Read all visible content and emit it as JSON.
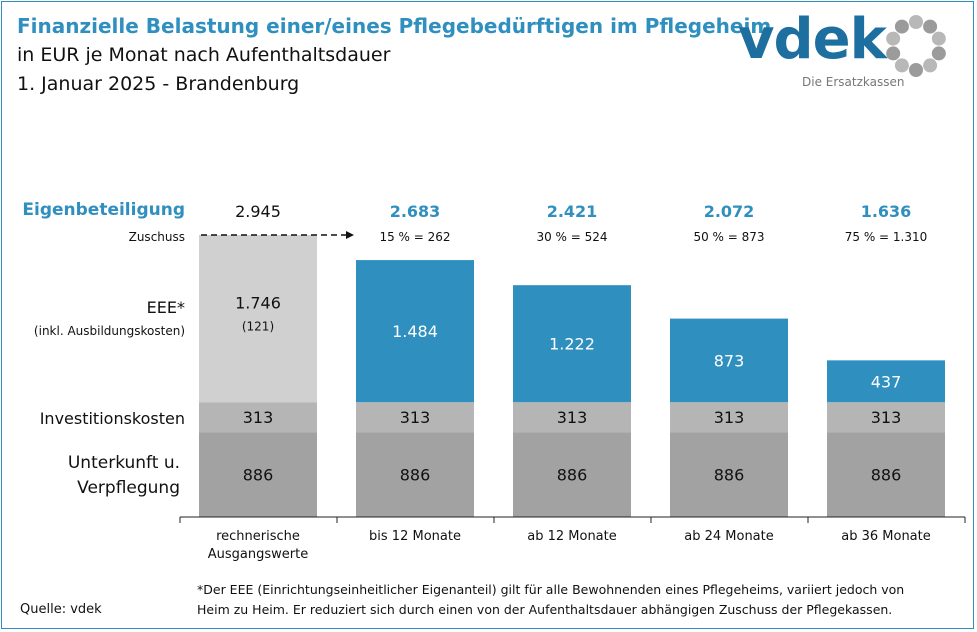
{
  "header": {
    "title": "Finanzielle Belastung einer/eines Pflegebedürftigen im Pflegeheim",
    "subtitle1": "in EUR je Monat nach Aufenthaltsdauer",
    "subtitle2": "1. Januar 2025 - Brandenburg"
  },
  "logo": {
    "text": "vdek",
    "tagline": "Die Ersatzkassen"
  },
  "footnote": "*Der EEE (Einrichtungseinheitlicher Eigenanteil) gilt für alle Bewohnenden eines Pflegeheims, variiert jedoch von Heim zu Heim. Er reduziert sich durch einen von der Aufenthaltsdauer abhängigen Zuschuss der Pflegekassen.",
  "source": "Quelle: vdek",
  "colors": {
    "accent": "#2f8fbf",
    "eee_baseline": "#d0d0d0",
    "investition": "#b5b5b5",
    "unterkunft": "#a2a2a2"
  },
  "chart_data": {
    "type": "bar",
    "stacked": true,
    "categories": [
      "rechnerische Ausgangswerte",
      "bis 12 Monate",
      "ab 12 Monate",
      "ab 24 Monate",
      "ab 36 Monate"
    ],
    "row_labels": {
      "eigenbeteiligung": "Eigenbeteiligung",
      "zuschuss": "Zuschuss",
      "eee": "EEE*",
      "eee_sub": "(inkl. Ausbildungskosten)",
      "investition": "Investitionskosten",
      "unterkunft": "Unterkunft u. Verpflegung"
    },
    "series": [
      {
        "name": "Unterkunft u. Verpflegung",
        "values": [
          886,
          886,
          886,
          886,
          886
        ]
      },
      {
        "name": "Investitionskosten",
        "values": [
          313,
          313,
          313,
          313,
          313
        ]
      },
      {
        "name": "EEE*",
        "values": [
          1746,
          1484,
          1222,
          873,
          437
        ]
      }
    ],
    "value_labels": {
      "unterkunft": [
        "886",
        "886",
        "886",
        "886",
        "886"
      ],
      "investition": [
        "313",
        "313",
        "313",
        "313",
        "313"
      ],
      "eee": [
        "1.746",
        "1.484",
        "1.222",
        "873",
        "437"
      ]
    },
    "eee_note": "(121)",
    "eigenbeteiligung": [
      "2.945",
      "2.683",
      "2.421",
      "2.072",
      "1.636"
    ],
    "zuschuss": [
      "",
      "15 % = 262",
      "30 % = 524",
      "50 % = 873",
      "75 % = 1.310"
    ],
    "ylim": [
      0,
      2945
    ]
  }
}
